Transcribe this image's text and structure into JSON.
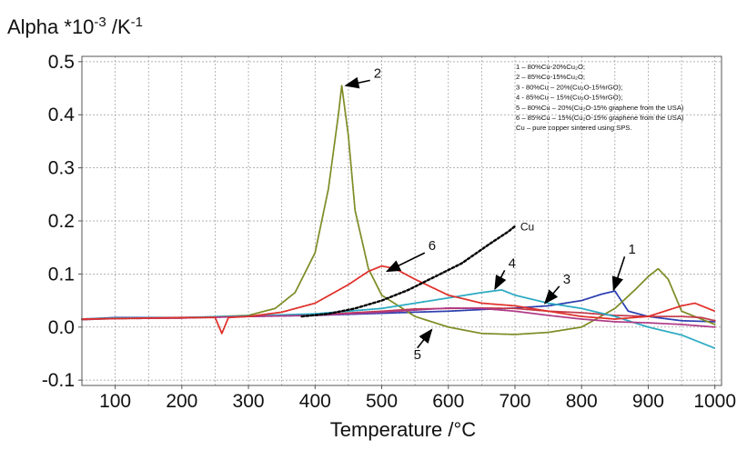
{
  "chart_data": {
    "type": "line",
    "ylabel": {
      "base": "Alpha *10",
      "exp1": "-3",
      "mid": " /K",
      "exp2": "-1"
    },
    "xlabel": "Temperature /°C",
    "xlim": [
      50,
      1010
    ],
    "ylim": [
      -0.11,
      0.51
    ],
    "x_ticks": [
      100,
      200,
      300,
      400,
      500,
      600,
      700,
      800,
      900,
      1000
    ],
    "y_ticks": [
      -0.1,
      0.0,
      0.1,
      0.2,
      0.3,
      0.4,
      0.5
    ],
    "x_tick_labels": [
      "100",
      "200",
      "300",
      "400",
      "500",
      "600",
      "700",
      "800",
      "900",
      "1000"
    ],
    "y_tick_labels": [
      "-0.1",
      "0.0",
      "0.1",
      "0.2",
      "0.3",
      "0.4",
      "0.5"
    ],
    "x_grid_lines": [
      50,
      100,
      150,
      200,
      250,
      300,
      350,
      400,
      450,
      500,
      550,
      600,
      650,
      700,
      750,
      800,
      850,
      900,
      950,
      1000
    ],
    "y_grid_lines": [
      -0.1,
      0.0,
      0.1,
      0.2,
      0.3,
      0.4,
      0.5
    ],
    "grid": true,
    "legend_position": "top-right",
    "legend": [
      "1 – 80%Cu-20%Cu₂O;",
      "2 – 85%Cu-15%Cu₂O;",
      "3 - 80%Cu – 20%(Cu₂O-15%rGO);",
      "4 - 85%Cu – 15%(Cu₂O-15%rGO);",
      "5 – 80%Cu – 20%(Cu₂O-15% graphene from the USA)",
      "6 – 85%Cu – 15%(Cu₂O-15% graphene from the USA)",
      "Cu – pure copper sintered using SPS."
    ],
    "series": [
      {
        "name": "1",
        "color": "#2b3fb0",
        "x": [
          50,
          100,
          200,
          300,
          400,
          500,
          550,
          600,
          650,
          700,
          750,
          800,
          830,
          850,
          870,
          900,
          950,
          1000
        ],
        "y": [
          0.015,
          0.018,
          0.018,
          0.02,
          0.022,
          0.026,
          0.028,
          0.03,
          0.033,
          0.036,
          0.04,
          0.05,
          0.062,
          0.068,
          0.03,
          0.02,
          0.012,
          0.01
        ]
      },
      {
        "name": "2",
        "color": "#7f8c26",
        "x": [
          50,
          100,
          200,
          300,
          340,
          370,
          400,
          420,
          435,
          440,
          450,
          460,
          480,
          500,
          550,
          600,
          650,
          700,
          750,
          800,
          850,
          880,
          900,
          915,
          930,
          950,
          1000
        ],
        "y": [
          0.014,
          0.016,
          0.017,
          0.022,
          0.035,
          0.065,
          0.14,
          0.26,
          0.4,
          0.455,
          0.36,
          0.22,
          0.11,
          0.06,
          0.02,
          0.0,
          -0.012,
          -0.014,
          -0.01,
          0.0,
          0.035,
          0.07,
          0.095,
          0.11,
          0.09,
          0.03,
          0.005
        ]
      },
      {
        "name": "3",
        "color": "#c23a4a",
        "x": [
          50,
          100,
          200,
          300,
          400,
          500,
          550,
          600,
          650,
          700,
          750,
          800,
          850,
          900,
          950,
          980,
          1000
        ],
        "y": [
          0.015,
          0.016,
          0.017,
          0.02,
          0.023,
          0.03,
          0.034,
          0.035,
          0.036,
          0.035,
          0.03,
          0.027,
          0.022,
          0.02,
          0.02,
          0.018,
          0.012
        ]
      },
      {
        "name": "4",
        "color": "#2aaac2",
        "x": [
          50,
          100,
          200,
          300,
          400,
          500,
          550,
          600,
          650,
          680,
          700,
          750,
          800,
          850,
          900,
          950,
          1000
        ],
        "y": [
          0.015,
          0.017,
          0.018,
          0.021,
          0.025,
          0.035,
          0.045,
          0.055,
          0.065,
          0.07,
          0.06,
          0.045,
          0.035,
          0.02,
          0.0,
          -0.015,
          -0.04
        ]
      },
      {
        "name": "5",
        "color": "#b03a86",
        "x": [
          50,
          100,
          200,
          300,
          400,
          500,
          550,
          600,
          650,
          700,
          750,
          800,
          850,
          900,
          950,
          1000
        ],
        "y": [
          0.014,
          0.016,
          0.017,
          0.02,
          0.022,
          0.028,
          0.032,
          0.036,
          0.035,
          0.03,
          0.022,
          0.015,
          0.01,
          0.008,
          0.005,
          0.0
        ]
      },
      {
        "name": "6",
        "color": "#e0302a",
        "x": [
          50,
          100,
          200,
          250,
          260,
          270,
          300,
          350,
          400,
          450,
          480,
          500,
          520,
          550,
          600,
          650,
          700,
          750,
          800,
          850,
          900,
          950,
          970,
          1000
        ],
        "y": [
          0.015,
          0.016,
          0.018,
          0.018,
          -0.012,
          0.018,
          0.02,
          0.028,
          0.045,
          0.08,
          0.105,
          0.115,
          0.11,
          0.09,
          0.06,
          0.045,
          0.04,
          0.03,
          0.02,
          0.015,
          0.02,
          0.04,
          0.045,
          0.03
        ]
      },
      {
        "name": "Cu",
        "color": "#000000",
        "dash": true,
        "x": [
          380,
          420,
          460,
          500,
          540,
          580,
          620,
          660,
          690,
          700
        ],
        "y": [
          0.02,
          0.025,
          0.035,
          0.05,
          0.07,
          0.095,
          0.12,
          0.155,
          0.18,
          0.19
        ]
      }
    ],
    "annotations": [
      {
        "text": "2",
        "x": 488,
        "y": 0.47,
        "arrow_to": [
          446,
          0.455
        ]
      },
      {
        "text": "6",
        "x": 570,
        "y": 0.145,
        "arrow_to": [
          508,
          0.105
        ]
      },
      {
        "text": "4",
        "x": 690,
        "y": 0.112,
        "arrow_to": [
          670,
          0.072
        ]
      },
      {
        "text": "3",
        "x": 772,
        "y": 0.082,
        "arrow_to": [
          745,
          0.045
        ]
      },
      {
        "text": "1",
        "x": 870,
        "y": 0.138,
        "arrow_to": [
          848,
          0.07
        ]
      },
      {
        "text": "5",
        "x": 548,
        "y": -0.06,
        "arrow_to": [
          575,
          -0.005
        ]
      },
      {
        "text": "Cu",
        "x": 708,
        "y": 0.182,
        "arrow_to": null
      }
    ]
  }
}
